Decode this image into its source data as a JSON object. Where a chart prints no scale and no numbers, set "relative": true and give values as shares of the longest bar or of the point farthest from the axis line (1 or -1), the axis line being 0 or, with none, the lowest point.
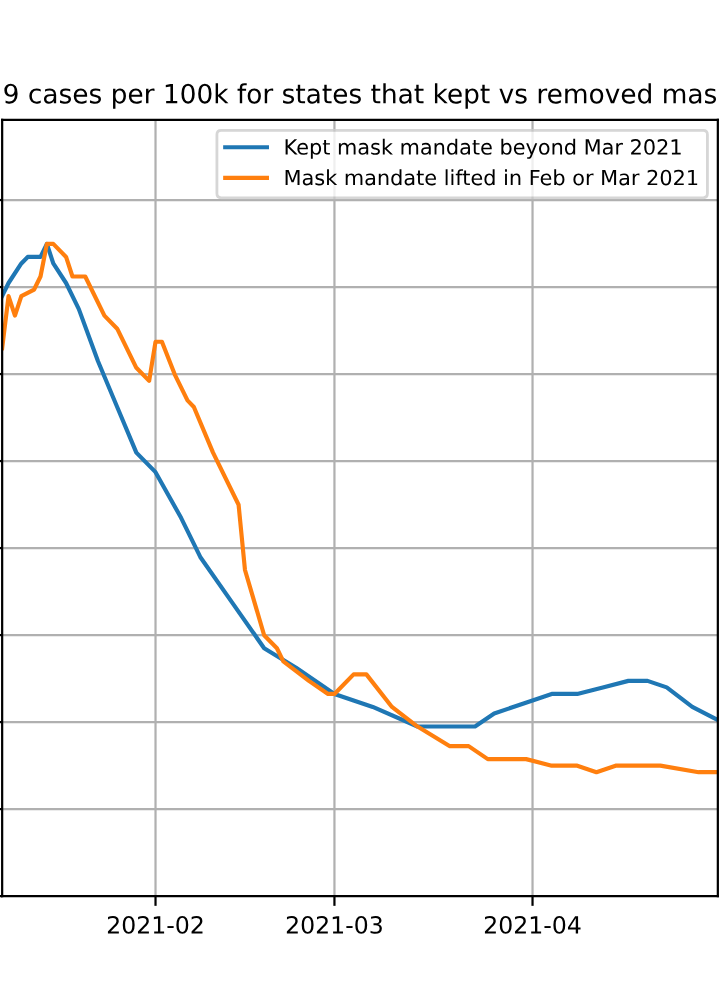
{
  "chart_data": {
    "type": "line",
    "title": "9 cases per 100k for states that kept vs removed mas",
    "relative": true,
    "grid": true,
    "legend": "top right",
    "line_style": "solid",
    "xlim": [
      "2021-01-08",
      "2021-04-30"
    ],
    "xticks": [
      {
        "value": "2021-02-01",
        "label": "2021-02"
      },
      {
        "value": "2021-03-01",
        "label": "2021-03"
      },
      {
        "value": "2021-04-01",
        "label": "2021-04"
      }
    ],
    "series": [
      {
        "name": "Kept mask mandate beyond Mar 2021",
        "color": "#1f77b4",
        "x": [
          "2021-01-08",
          "2021-01-09",
          "2021-01-11",
          "2021-01-12",
          "2021-01-14",
          "2021-01-15",
          "2021-01-16",
          "2021-01-18",
          "2021-01-20",
          "2021-01-23",
          "2021-01-26",
          "2021-01-29",
          "2021-02-01",
          "2021-02-05",
          "2021-02-08",
          "2021-02-13",
          "2021-02-18",
          "2021-02-23",
          "2021-03-01",
          "2021-03-07",
          "2021-03-14",
          "2021-03-22",
          "2021-03-23",
          "2021-03-26",
          "2021-04-01",
          "2021-04-04",
          "2021-04-08",
          "2021-04-12",
          "2021-04-16",
          "2021-04-19",
          "2021-04-22",
          "2021-04-26",
          "2021-04-30"
        ],
        "values": [
          0.92,
          0.94,
          0.97,
          0.98,
          0.98,
          1.0,
          0.97,
          0.94,
          0.9,
          0.82,
          0.75,
          0.68,
          0.65,
          0.58,
          0.52,
          0.45,
          0.38,
          0.35,
          0.31,
          0.29,
          0.26,
          0.26,
          0.26,
          0.28,
          0.3,
          0.31,
          0.31,
          0.32,
          0.33,
          0.33,
          0.32,
          0.29,
          0.27
        ]
      },
      {
        "name": "Mask mandate lifted in Feb or Mar 2021",
        "color": "#ff7f0e",
        "x": [
          "2021-01-08",
          "2021-01-09",
          "2021-01-10",
          "2021-01-11",
          "2021-01-13",
          "2021-01-14",
          "2021-01-15",
          "2021-01-16",
          "2021-01-18",
          "2021-01-19",
          "2021-01-21",
          "2021-01-24",
          "2021-01-26",
          "2021-01-29",
          "2021-01-31",
          "2021-02-01",
          "2021-02-02",
          "2021-02-04",
          "2021-02-06",
          "2021-02-07",
          "2021-02-10",
          "2021-02-14",
          "2021-02-15",
          "2021-02-18",
          "2021-02-20",
          "2021-02-21",
          "2021-02-25",
          "2021-02-28",
          "2021-03-01",
          "2021-03-04",
          "2021-03-06",
          "2021-03-10",
          "2021-03-14",
          "2021-03-19",
          "2021-03-22",
          "2021-03-25",
          "2021-03-29",
          "2021-03-31",
          "2021-04-04",
          "2021-04-08",
          "2021-04-11",
          "2021-04-14",
          "2021-04-21",
          "2021-04-27",
          "2021-04-30"
        ],
        "values": [
          0.84,
          0.92,
          0.89,
          0.92,
          0.93,
          0.95,
          1.0,
          1.0,
          0.98,
          0.95,
          0.95,
          0.89,
          0.87,
          0.81,
          0.79,
          0.85,
          0.85,
          0.8,
          0.76,
          0.75,
          0.68,
          0.6,
          0.5,
          0.4,
          0.38,
          0.36,
          0.33,
          0.31,
          0.31,
          0.34,
          0.34,
          0.29,
          0.26,
          0.23,
          0.23,
          0.21,
          0.21,
          0.21,
          0.2,
          0.2,
          0.19,
          0.2,
          0.2,
          0.19,
          0.19
        ]
      }
    ]
  }
}
